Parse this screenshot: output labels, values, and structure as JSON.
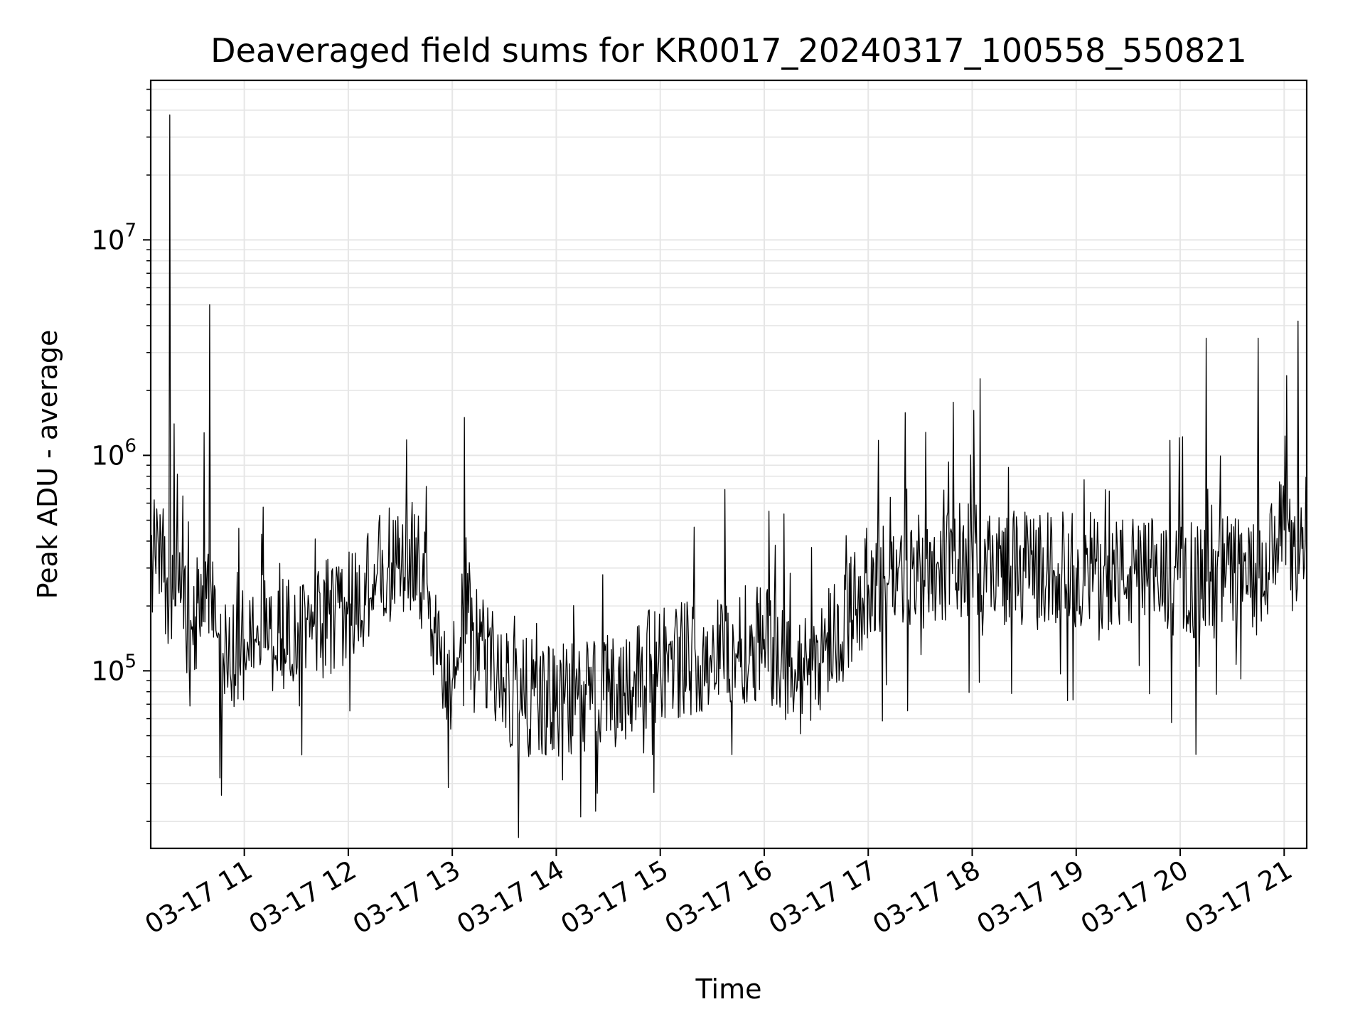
{
  "chart_data": {
    "type": "line",
    "title": "Deaveraged field sums for KR0017_20240317_100558_550821",
    "xlabel": "Time",
    "ylabel": "Peak ADU - average",
    "xscale": "time",
    "xlim": [
      "2024-03-17 10:06",
      "2024-03-17 21:13"
    ],
    "yscale": "log",
    "ylim": [
      15000,
      55000000
    ],
    "x_tick_labels": [
      "03-17 11",
      "03-17 12",
      "03-17 13",
      "03-17 14",
      "03-17 15",
      "03-17 16",
      "03-17 17",
      "03-17 18",
      "03-17 19",
      "03-17 20",
      "03-17 21"
    ],
    "y_tick_labels": [
      {
        "base": "10",
        "exp": "5",
        "value": 100000
      },
      {
        "base": "10",
        "exp": "6",
        "value": 1000000
      },
      {
        "base": "10",
        "exp": "7",
        "value": 10000000
      }
    ],
    "grid": true,
    "line_color": "#000000",
    "grid_color": "#e6e6e6",
    "series": [
      {
        "points": [
          [
            "2024-03-17 10:06",
            300000
          ],
          [
            "2024-03-17 10:10",
            450000
          ],
          [
            "2024-03-17 10:15",
            250000
          ],
          [
            "2024-03-17 10:17",
            38000000
          ],
          [
            "2024-03-17 10:20",
            200000
          ],
          [
            "2024-03-17 10:30",
            160000
          ],
          [
            "2024-03-17 10:40",
            5000000
          ],
          [
            "2024-03-17 10:45",
            150000
          ],
          [
            "2024-03-17 10:50",
            100000
          ],
          [
            "2024-03-17 11:00",
            140000
          ],
          [
            "2024-03-17 11:20",
            150000
          ],
          [
            "2024-03-17 11:40",
            160000
          ],
          [
            "2024-03-17 12:00",
            200000
          ],
          [
            "2024-03-17 12:20",
            300000
          ],
          [
            "2024-03-17 12:40",
            350000
          ],
          [
            "2024-03-17 12:50",
            150000
          ],
          [
            "2024-03-17 13:00",
            90000
          ],
          [
            "2024-03-17 13:07",
            1500000
          ],
          [
            "2024-03-17 13:15",
            150000
          ],
          [
            "2024-03-17 13:30",
            80000
          ],
          [
            "2024-03-17 14:00",
            70000
          ],
          [
            "2024-03-17 14:30",
            80000
          ],
          [
            "2024-03-17 15:00",
            110000
          ],
          [
            "2024-03-17 15:30",
            120000
          ],
          [
            "2024-03-17 16:00",
            140000
          ],
          [
            "2024-03-17 16:20",
            90000
          ],
          [
            "2024-03-17 16:40",
            150000
          ],
          [
            "2024-03-17 17:00",
            250000
          ],
          [
            "2024-03-17 17:30",
            300000
          ],
          [
            "2024-03-17 18:00",
            330000
          ],
          [
            "2024-03-17 18:30",
            290000
          ],
          [
            "2024-03-17 19:00",
            300000
          ],
          [
            "2024-03-17 19:30",
            280000
          ],
          [
            "2024-03-17 20:00",
            270000
          ],
          [
            "2024-03-17 20:15",
            3500000
          ],
          [
            "2024-03-17 20:30",
            300000
          ],
          [
            "2024-03-17 20:45",
            3500000
          ],
          [
            "2024-03-17 21:00",
            450000
          ],
          [
            "2024-03-17 21:08",
            4200000
          ],
          [
            "2024-03-17 21:13",
            650000
          ]
        ]
      }
    ]
  }
}
